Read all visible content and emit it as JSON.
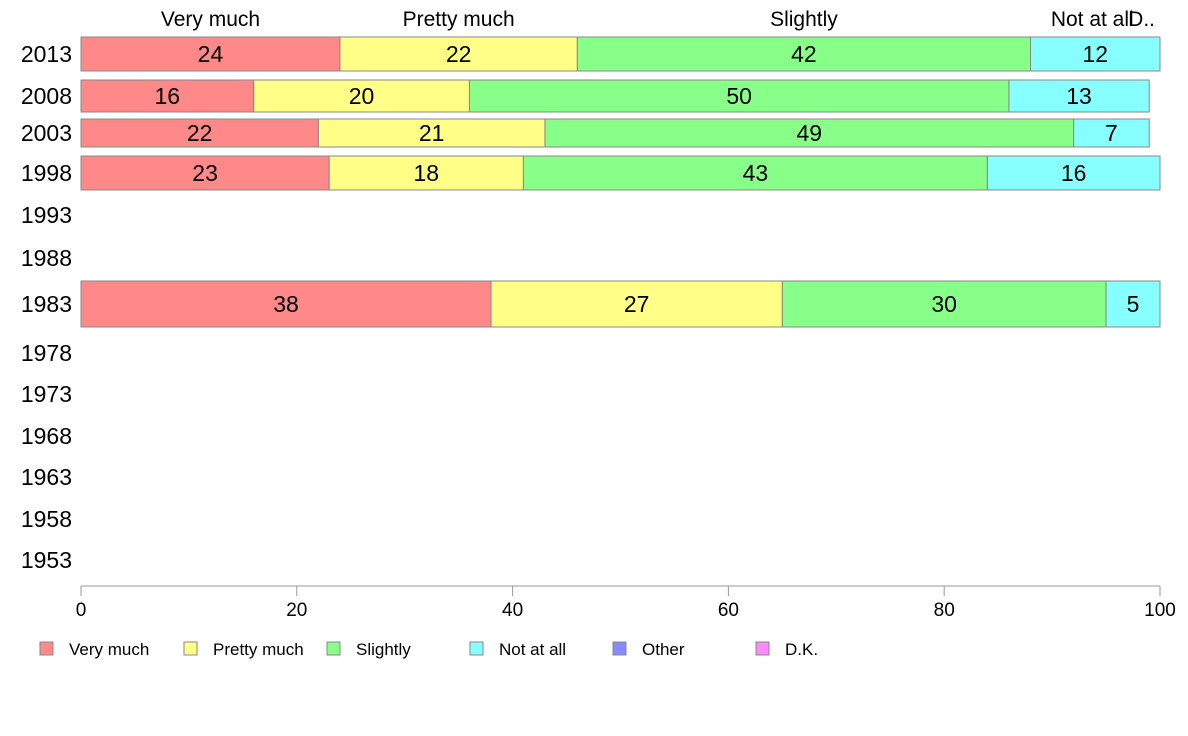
{
  "chart_data": {
    "type": "bar",
    "orientation": "horizontal",
    "stacked": true,
    "categories": [
      "2013",
      "2008",
      "2003",
      "1998",
      "1993",
      "1988",
      "1983",
      "1978",
      "1973",
      "1968",
      "1963",
      "1958",
      "1953"
    ],
    "series": [
      {
        "name": "Very much",
        "color": "#ff8888",
        "values": [
          24,
          16,
          22,
          23,
          null,
          null,
          38,
          null,
          null,
          null,
          null,
          null,
          null
        ]
      },
      {
        "name": "Pretty much",
        "color": "#ffff88",
        "values": [
          22,
          20,
          21,
          18,
          null,
          null,
          27,
          null,
          null,
          null,
          null,
          null,
          null
        ]
      },
      {
        "name": "Slightly",
        "color": "#88ff88",
        "values": [
          42,
          50,
          49,
          43,
          null,
          null,
          30,
          null,
          null,
          null,
          null,
          null,
          null
        ]
      },
      {
        "name": "Not at all",
        "color": "#88ffff",
        "values": [
          12,
          13,
          7,
          16,
          null,
          null,
          5,
          null,
          null,
          null,
          null,
          null,
          null
        ]
      },
      {
        "name": "Other",
        "color": "#8888ff",
        "values": [
          0,
          0,
          0,
          0,
          null,
          null,
          0,
          null,
          null,
          null,
          null,
          null,
          null
        ]
      },
      {
        "name": "D.K.",
        "color": "#ff88ff",
        "values": [
          0,
          0,
          0,
          0,
          null,
          null,
          0,
          null,
          null,
          null,
          null,
          null,
          null
        ]
      }
    ],
    "column_headers": [
      "Very much",
      "Pretty much",
      "Slightly",
      "Not at all",
      "D.K."
    ],
    "column_header_display": [
      "Very much",
      "Pretty much",
      "Slightly",
      "Not at all",
      "D.."
    ],
    "xlim": [
      0,
      100
    ],
    "xticks": [
      0,
      20,
      40,
      60,
      80,
      100
    ],
    "title": "",
    "xlabel": "",
    "ylabel": "",
    "grid": false,
    "legend_position": "bottom-left"
  }
}
